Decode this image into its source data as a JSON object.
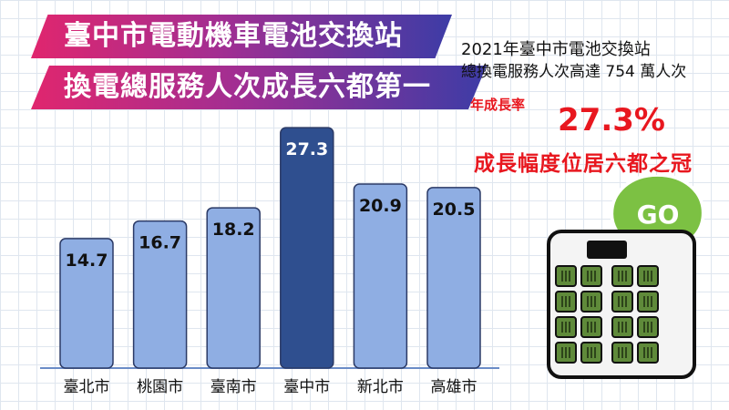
{
  "headline": {
    "line1": "臺中市電動機車電池交換站",
    "line2": "換電總服務人次成長六都第一"
  },
  "summary": {
    "line1": "2021年臺中市電池交換站",
    "line2": "總換電服務人次高達 754 萬人次",
    "rate_label": "年成長率",
    "rate_value": "27.3%",
    "rate_note": "成長幅度位居六都之冠"
  },
  "badge_text": "GO",
  "colors": {
    "bar": "#8faee3",
    "bar_highlight": "#2f4f8f",
    "bar_border": "#2b3a66",
    "accent_red": "#e8171f",
    "badge_green": "#7cc143"
  },
  "chart_data": {
    "type": "bar",
    "categories": [
      "臺北市",
      "桃園市",
      "臺南市",
      "臺中市",
      "新北市",
      "高雄市"
    ],
    "values": [
      14.7,
      16.7,
      18.2,
      27.3,
      20.9,
      20.5
    ],
    "value_labels": [
      "14.7",
      "16.7",
      "18.2",
      "27.3",
      "20.9",
      "20.5"
    ],
    "highlight": "臺中市",
    "title": "",
    "xlabel": "",
    "ylabel": "",
    "ylim": [
      0,
      30
    ],
    "grid": false,
    "legend": "none"
  }
}
